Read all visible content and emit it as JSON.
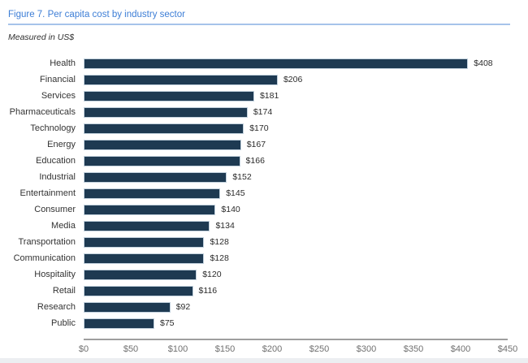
{
  "header": {
    "title": "Figure 7. Per capita cost by industry sector",
    "subtitle": "Measured in US$"
  },
  "colors": {
    "title_blue": "#3d7ed6",
    "title_rule_blue": "#a6c3ea",
    "bar_navy": "#1e3a52",
    "bar_outline": "#c3d2de",
    "axis_gray": "#9e9e9e",
    "tick_text_gray": "#707070",
    "bottom_strip_gray": "#eceef1"
  },
  "chart_data": {
    "type": "bar",
    "orientation": "horizontal",
    "title": "Figure 7. Per capita cost by industry sector",
    "subtitle": "Measured in US$",
    "categories": [
      "Health",
      "Financial",
      "Services",
      "Pharmaceuticals",
      "Technology",
      "Energy",
      "Education",
      "Industrial",
      "Entertainment",
      "Consumer",
      "Media",
      "Transportation",
      "Communication",
      "Hospitality",
      "Retail",
      "Research",
      "Public"
    ],
    "values": [
      408,
      206,
      181,
      174,
      170,
      167,
      166,
      152,
      145,
      140,
      134,
      128,
      128,
      120,
      116,
      92,
      75
    ],
    "value_labels": [
      "$408",
      "$206",
      "$181",
      "$174",
      "$170",
      "$167",
      "$166",
      "$152",
      "$145",
      "$140",
      "$134",
      "$128",
      "$128",
      "$120",
      "$116",
      "$92",
      "$75"
    ],
    "xlabel": "",
    "ylabel": "",
    "xlim": [
      0,
      450
    ],
    "x_tick_labels": [
      "$0",
      "$50",
      "$100",
      "$150",
      "$200",
      "$250",
      "$300",
      "$350",
      "$400",
      "$450"
    ],
    "grid": false,
    "legend": false,
    "data_labels_position": "end-of-bar"
  }
}
